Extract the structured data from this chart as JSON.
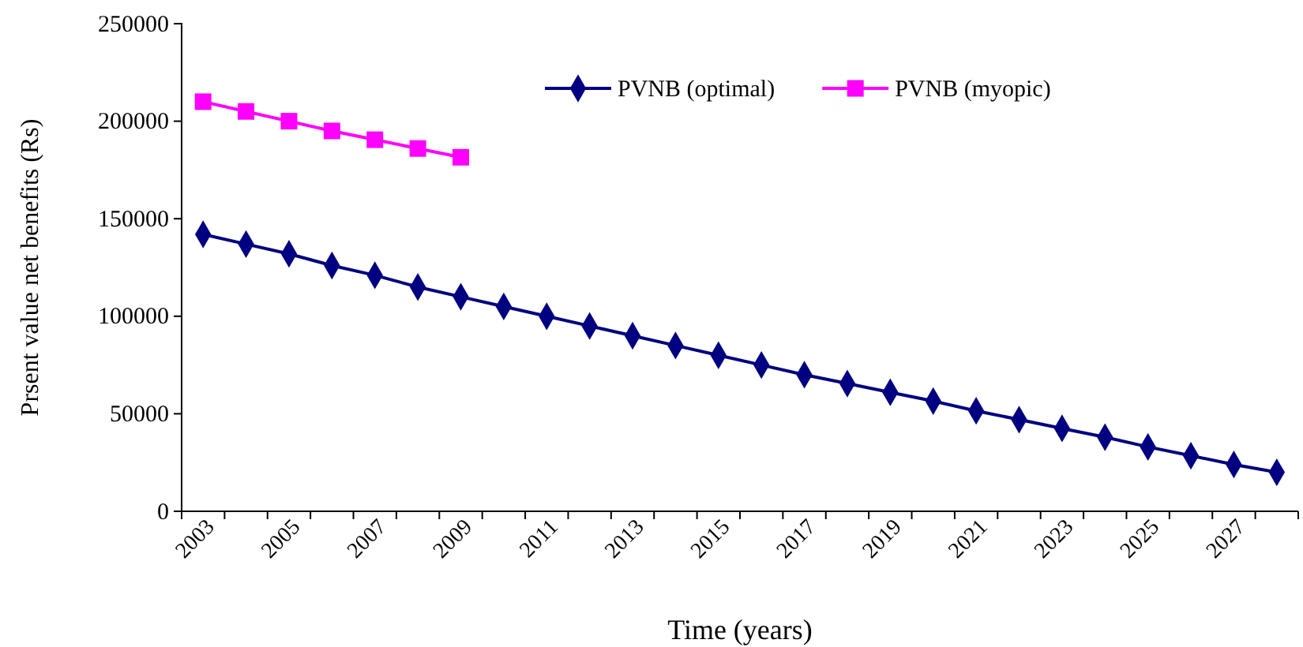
{
  "chart_data": {
    "type": "line",
    "xlabel": "Time (years)",
    "ylabel": "Prsent value net benefits (Rs)",
    "categories": [
      "2003",
      null,
      "2005",
      null,
      "2007",
      null,
      "2009",
      null,
      "2011",
      null,
      "2013",
      null,
      "2015",
      null,
      "2017",
      null,
      "2019",
      null,
      "2021",
      null,
      "2023",
      null,
      "2025",
      null,
      "2027",
      null
    ],
    "series": [
      {
        "name": "PVNB (optimal)",
        "color": "#000080",
        "marker": "diamond",
        "values": [
          142000,
          137000,
          132000,
          126000,
          121000,
          115000,
          110000,
          105000,
          100000,
          95000,
          90000,
          85000,
          80000,
          75000,
          70000,
          65500,
          61000,
          56500,
          51500,
          47000,
          42500,
          38000,
          33000,
          28500,
          24000,
          20000
        ]
      },
      {
        "name": "PVNB (myopic)",
        "color": "#ff00ff",
        "marker": "square",
        "values": [
          210000,
          205000,
          200000,
          195000,
          190500,
          186000,
          181500,
          null,
          null,
          null,
          null,
          null,
          null,
          null,
          null,
          null,
          null,
          null,
          null,
          null,
          null,
          null,
          null,
          null,
          null,
          null
        ]
      }
    ],
    "ylim": [
      0,
      250000
    ],
    "yticks": [
      0,
      50000,
      100000,
      150000,
      200000,
      250000
    ],
    "grid": false,
    "legend": "top right"
  }
}
